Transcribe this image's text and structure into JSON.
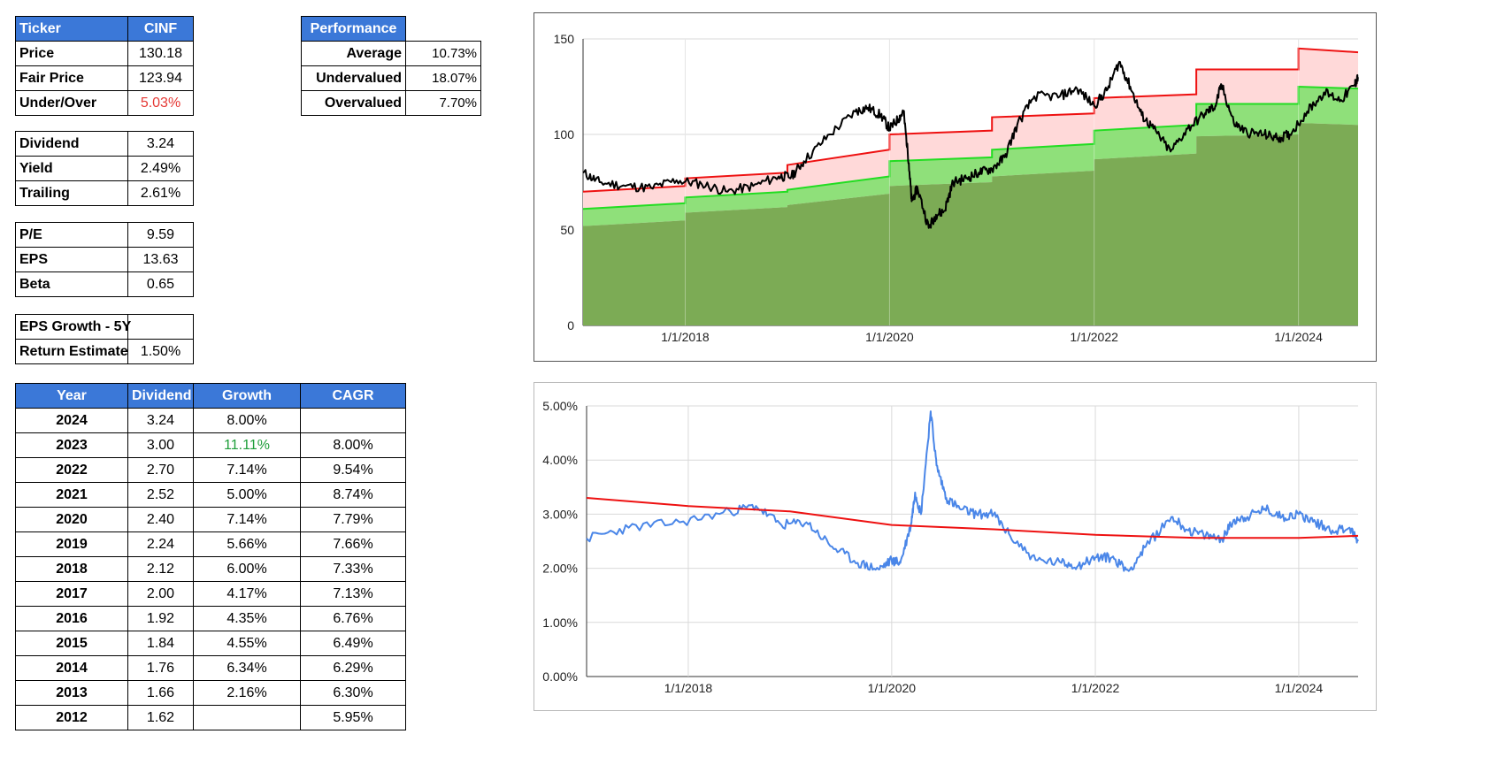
{
  "ticker_table": {
    "header": {
      "label": "Ticker",
      "value": "CINF"
    },
    "rows": [
      {
        "label": "Price",
        "value": "130.18"
      },
      {
        "label": "Fair Price",
        "value": "123.94"
      },
      {
        "label": "Under/Over",
        "value": "5.03%",
        "color": "#e53935"
      }
    ]
  },
  "dividend_table": [
    {
      "label": "Dividend",
      "value": "3.24"
    },
    {
      "label": "Yield",
      "value": "2.49%"
    },
    {
      "label": "Trailing",
      "value": "2.61%"
    }
  ],
  "valuation_table": [
    {
      "label": "P/E",
      "value": "9.59"
    },
    {
      "label": "EPS",
      "value": "13.63"
    },
    {
      "label": "Beta",
      "value": "0.65"
    }
  ],
  "growth_table": [
    {
      "label": "EPS Growth - 5Y",
      "value": ""
    },
    {
      "label": "Return Estimate",
      "value": "1.50%"
    }
  ],
  "performance_table": {
    "header": "Performance",
    "rows": [
      {
        "label": "Average",
        "value": "10.73%"
      },
      {
        "label": "Undervalued",
        "value": "18.07%"
      },
      {
        "label": "Overvalued",
        "value": "7.70%"
      }
    ]
  },
  "history_table": {
    "headers": [
      "Year",
      "Dividend",
      "Growth",
      "CAGR"
    ],
    "rows": [
      {
        "year": "2024",
        "dividend": "3.24",
        "growth": "8.00%",
        "cagr": ""
      },
      {
        "year": "2023",
        "dividend": "3.00",
        "growth": "11.11%",
        "cagr": "8.00%",
        "growth_color": "#1e9e3a"
      },
      {
        "year": "2022",
        "dividend": "2.70",
        "growth": "7.14%",
        "cagr": "9.54%"
      },
      {
        "year": "2021",
        "dividend": "2.52",
        "growth": "5.00%",
        "cagr": "8.74%"
      },
      {
        "year": "2020",
        "dividend": "2.40",
        "growth": "7.14%",
        "cagr": "7.79%"
      },
      {
        "year": "2019",
        "dividend": "2.24",
        "growth": "5.66%",
        "cagr": "7.66%"
      },
      {
        "year": "2018",
        "dividend": "2.12",
        "growth": "6.00%",
        "cagr": "7.33%"
      },
      {
        "year": "2017",
        "dividend": "2.00",
        "growth": "4.17%",
        "cagr": "7.13%"
      },
      {
        "year": "2016",
        "dividend": "1.92",
        "growth": "4.35%",
        "cagr": "6.76%"
      },
      {
        "year": "2015",
        "dividend": "1.84",
        "growth": "4.55%",
        "cagr": "6.49%"
      },
      {
        "year": "2014",
        "dividend": "1.76",
        "growth": "6.34%",
        "cagr": "6.29%"
      },
      {
        "year": "2013",
        "dividend": "1.66",
        "growth": "2.16%",
        "cagr": "6.30%"
      },
      {
        "year": "2012",
        "dividend": "1.62",
        "growth": "",
        "cagr": "5.95%"
      }
    ]
  },
  "chart_data": [
    {
      "type": "area",
      "title": "",
      "xlabel": "",
      "ylabel": "",
      "x_range": [
        "2017-01-01",
        "2024-08-01"
      ],
      "ylim": [
        0,
        150
      ],
      "y_ticks": [
        "0",
        "50",
        "100",
        "150"
      ],
      "x_ticks": [
        {
          "date": "2018-01-01",
          "label": "1/1/2018"
        },
        {
          "date": "2020-01-01",
          "label": "1/1/2020"
        },
        {
          "date": "2022-01-01",
          "label": "1/1/2022"
        },
        {
          "date": "2024-01-01",
          "label": "1/1/2024"
        }
      ],
      "grid": true,
      "legend": "none",
      "series": [
        {
          "color": "#7cab55",
          "steps": [
            {
              "from": "2017-01-01",
              "to": "2018-01-01",
              "start": 52,
              "end": 55
            },
            {
              "from": "2018-01-01",
              "to": "2019-01-01",
              "start": 59,
              "end": 62
            },
            {
              "from": "2019-01-01",
              "to": "2020-01-01",
              "start": 63,
              "end": 69
            },
            {
              "from": "2020-01-01",
              "to": "2021-01-01",
              "start": 73,
              "end": 75
            },
            {
              "from": "2021-01-01",
              "to": "2022-01-01",
              "start": 78,
              "end": 81
            },
            {
              "from": "2022-01-01",
              "to": "2023-01-01",
              "start": 87,
              "end": 90
            },
            {
              "from": "2023-01-01",
              "to": "2024-01-01",
              "start": 99,
              "end": 100
            },
            {
              "from": "2024-01-01",
              "to": "2024-08-01",
              "start": 106,
              "end": 105
            }
          ]
        },
        {
          "color": "#22dd22",
          "steps": [
            {
              "from": "2017-01-01",
              "to": "2018-01-01",
              "start": 61,
              "end": 64
            },
            {
              "from": "2018-01-01",
              "to": "2019-01-01",
              "start": 67,
              "end": 70
            },
            {
              "from": "2019-01-01",
              "to": "2020-01-01",
              "start": 71,
              "end": 78
            },
            {
              "from": "2020-01-01",
              "to": "2021-01-01",
              "start": 86,
              "end": 88
            },
            {
              "from": "2021-01-01",
              "to": "2022-01-01",
              "start": 92,
              "end": 95
            },
            {
              "from": "2022-01-01",
              "to": "2023-01-01",
              "start": 102,
              "end": 105
            },
            {
              "from": "2023-01-01",
              "to": "2024-01-01",
              "start": 116,
              "end": 116
            },
            {
              "from": "2024-01-01",
              "to": "2024-08-01",
              "start": 125,
              "end": 124
            }
          ]
        },
        {
          "color": "#ee1111",
          "steps": [
            {
              "from": "2017-01-01",
              "to": "2018-01-01",
              "start": 70,
              "end": 73
            },
            {
              "from": "2018-01-01",
              "to": "2019-01-01",
              "start": 77,
              "end": 80
            },
            {
              "from": "2019-01-01",
              "to": "2020-01-01",
              "start": 84,
              "end": 92
            },
            {
              "from": "2020-01-01",
              "to": "2021-01-01",
              "start": 100,
              "end": 102
            },
            {
              "from": "2021-01-01",
              "to": "2022-01-01",
              "start": 109,
              "end": 111
            },
            {
              "from": "2022-01-01",
              "to": "2023-01-01",
              "start": 119,
              "end": 121
            },
            {
              "from": "2023-01-01",
              "to": "2024-01-01",
              "start": 134,
              "end": 134
            },
            {
              "from": "2024-01-01",
              "to": "2024-08-01",
              "start": 145,
              "end": 143
            }
          ]
        },
        {
          "color": "#000000",
          "points": [
            [
              "2017-01-01",
              80
            ],
            [
              "2017-03-01",
              75
            ],
            [
              "2017-06-01",
              73
            ],
            [
              "2017-09-01",
              72
            ],
            [
              "2017-12-01",
              76
            ],
            [
              "2018-03-01",
              74
            ],
            [
              "2018-06-01",
              70
            ],
            [
              "2018-09-01",
              73
            ],
            [
              "2018-12-01",
              78
            ],
            [
              "2019-01-15",
              78
            ],
            [
              "2019-03-01",
              86
            ],
            [
              "2019-06-01",
              100
            ],
            [
              "2019-09-01",
              112
            ],
            [
              "2019-10-15",
              114
            ],
            [
              "2019-12-01",
              110
            ],
            [
              "2020-01-01",
              103
            ],
            [
              "2020-02-01",
              108
            ],
            [
              "2020-02-20",
              112
            ],
            [
              "2020-03-10",
              85
            ],
            [
              "2020-03-20",
              65
            ],
            [
              "2020-04-10",
              72
            ],
            [
              "2020-05-20",
              51
            ],
            [
              "2020-06-15",
              58
            ],
            [
              "2020-07-15",
              60
            ],
            [
              "2020-08-15",
              75
            ],
            [
              "2020-10-01",
              77
            ],
            [
              "2020-11-15",
              80
            ],
            [
              "2021-01-01",
              82
            ],
            [
              "2021-02-15",
              88
            ],
            [
              "2021-04-01",
              105
            ],
            [
              "2021-06-01",
              120
            ],
            [
              "2021-09-01",
              120
            ],
            [
              "2021-11-01",
              124
            ],
            [
              "2022-01-01",
              115
            ],
            [
              "2022-02-15",
              123
            ],
            [
              "2022-04-01",
              138
            ],
            [
              "2022-05-10",
              125
            ],
            [
              "2022-06-20",
              110
            ],
            [
              "2022-08-01",
              103
            ],
            [
              "2022-10-01",
              91
            ],
            [
              "2022-12-01",
              103
            ],
            [
              "2023-02-01",
              111
            ],
            [
              "2023-03-10",
              115
            ],
            [
              "2023-04-01",
              126
            ],
            [
              "2023-05-15",
              106
            ],
            [
              "2023-07-01",
              101
            ],
            [
              "2023-09-01",
              100
            ],
            [
              "2023-10-20",
              98
            ],
            [
              "2023-12-01",
              100
            ],
            [
              "2024-02-01",
              112
            ],
            [
              "2024-04-01",
              122
            ],
            [
              "2024-06-01",
              118
            ],
            [
              "2024-07-20",
              126
            ],
            [
              "2024-08-01",
              130
            ]
          ]
        }
      ]
    },
    {
      "type": "line",
      "title": "",
      "xlabel": "",
      "ylabel": "",
      "x_range": [
        "2017-01-01",
        "2024-08-01"
      ],
      "ylim": [
        0,
        5
      ],
      "y_ticks": [
        "0.00%",
        "1.00%",
        "2.00%",
        "3.00%",
        "4.00%",
        "5.00%"
      ],
      "x_ticks": [
        {
          "date": "2018-01-01",
          "label": "1/1/2018"
        },
        {
          "date": "2020-01-01",
          "label": "1/1/2020"
        },
        {
          "date": "2022-01-01",
          "label": "1/1/2022"
        },
        {
          "date": "2024-01-01",
          "label": "1/1/2024"
        }
      ],
      "grid": true,
      "legend": "none",
      "series": [
        {
          "color": "#4a86e8",
          "points": [
            [
              "2017-01-01",
              2.55
            ],
            [
              "2017-06-01",
              2.75
            ],
            [
              "2017-12-01",
              2.85
            ],
            [
              "2018-06-01",
              3.05
            ],
            [
              "2018-09-01",
              3.15
            ],
            [
              "2018-12-01",
              2.8
            ],
            [
              "2019-03-01",
              2.85
            ],
            [
              "2019-06-01",
              2.4
            ],
            [
              "2019-09-01",
              2.1
            ],
            [
              "2019-11-15",
              1.98
            ],
            [
              "2020-01-01",
              2.15
            ],
            [
              "2020-02-01",
              2.1
            ],
            [
              "2020-03-10",
              2.8
            ],
            [
              "2020-03-25",
              3.4
            ],
            [
              "2020-04-15",
              3.0
            ],
            [
              "2020-05-20",
              4.9
            ],
            [
              "2020-06-10",
              3.9
            ],
            [
              "2020-07-15",
              3.3
            ],
            [
              "2020-09-01",
              3.1
            ],
            [
              "2020-11-01",
              3.0
            ],
            [
              "2021-01-01",
              3.0
            ],
            [
              "2021-03-01",
              2.6
            ],
            [
              "2021-06-01",
              2.15
            ],
            [
              "2021-09-01",
              2.1
            ],
            [
              "2021-11-01",
              2.05
            ],
            [
              "2022-01-01",
              2.2
            ],
            [
              "2022-03-01",
              2.2
            ],
            [
              "2022-05-01",
              1.95
            ],
            [
              "2022-07-01",
              2.4
            ],
            [
              "2022-10-01",
              2.95
            ],
            [
              "2022-12-01",
              2.7
            ],
            [
              "2023-02-01",
              2.6
            ],
            [
              "2023-04-01",
              2.55
            ],
            [
              "2023-05-15",
              2.9
            ],
            [
              "2023-07-01",
              2.95
            ],
            [
              "2023-09-01",
              3.1
            ],
            [
              "2023-11-01",
              2.95
            ],
            [
              "2024-01-01",
              3.0
            ],
            [
              "2024-03-01",
              2.85
            ],
            [
              "2024-05-01",
              2.7
            ],
            [
              "2024-07-01",
              2.75
            ],
            [
              "2024-08-01",
              2.5
            ]
          ]
        },
        {
          "color": "#ee1111",
          "points": [
            [
              "2017-01-01",
              3.3
            ],
            [
              "2018-01-01",
              3.15
            ],
            [
              "2019-01-01",
              3.05
            ],
            [
              "2020-01-01",
              2.8
            ],
            [
              "2021-01-01",
              2.72
            ],
            [
              "2022-01-01",
              2.62
            ],
            [
              "2023-01-01",
              2.56
            ],
            [
              "2024-01-01",
              2.56
            ],
            [
              "2024-08-01",
              2.6
            ]
          ]
        }
      ]
    }
  ]
}
